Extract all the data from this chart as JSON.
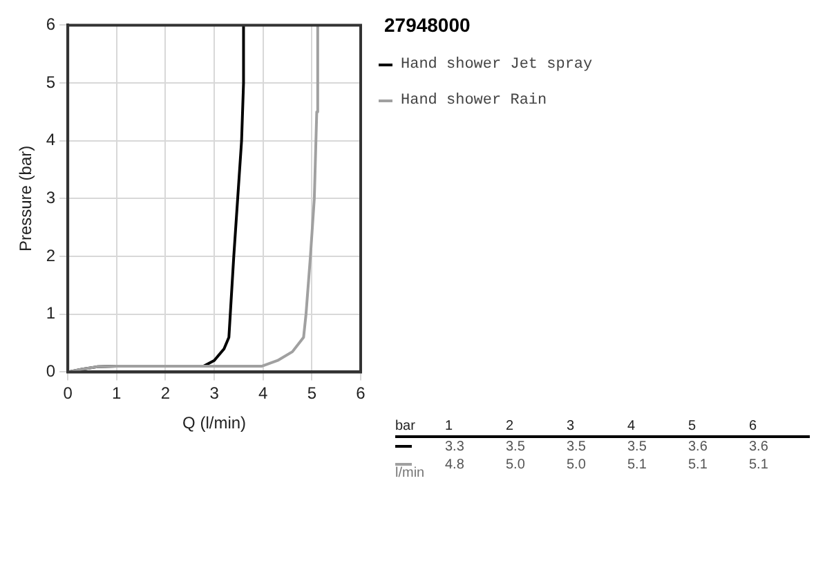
{
  "chart_data": {
    "type": "line",
    "title": "27948000",
    "xlabel": "Q (l/min)",
    "ylabel": "Pressure (bar)",
    "xlim": [
      0,
      6
    ],
    "ylim": [
      0,
      6
    ],
    "xticks": [
      0,
      1,
      2,
      3,
      4,
      5,
      6
    ],
    "yticks": [
      0,
      1,
      2,
      3,
      4,
      5,
      6
    ],
    "grid": true,
    "legend": "right",
    "marker": "none",
    "line_style": "solid",
    "series": [
      {
        "name": "Hand shower Jet spray",
        "color": "#000000",
        "x": [
          0,
          0.3,
          0.6,
          1,
          2,
          2.78,
          3.0,
          3.2,
          3.3,
          3.4,
          3.48,
          3.56,
          3.6,
          3.6
        ],
        "values": [
          0,
          0.05,
          0.09,
          0.1,
          0.1,
          0.1,
          0.2,
          0.4,
          0.6,
          2,
          3,
          4,
          5,
          6
        ]
      },
      {
        "name": "Hand shower Rain",
        "color": "#a0a0a0",
        "x": [
          0,
          0.3,
          0.6,
          1,
          2,
          3,
          3.97,
          4.3,
          4.6,
          4.83,
          4.88,
          4.97,
          5.05,
          5.1,
          5.12
        ],
        "values": [
          0,
          0.05,
          0.09,
          0.1,
          0.1,
          0.1,
          0.1,
          0.2,
          0.35,
          0.6,
          1,
          2,
          3,
          4.5,
          6
        ]
      }
    ],
    "annotations": [
      "bar",
      "1",
      "2",
      "3",
      "4",
      "5",
      "6",
      "3.3",
      "3.5",
      "3.5",
      "3.5",
      "3.6",
      "3.6",
      "4.8",
      "5.0",
      "5.0",
      "5.1",
      "5.1",
      "5.1",
      "l/min"
    ]
  }
}
